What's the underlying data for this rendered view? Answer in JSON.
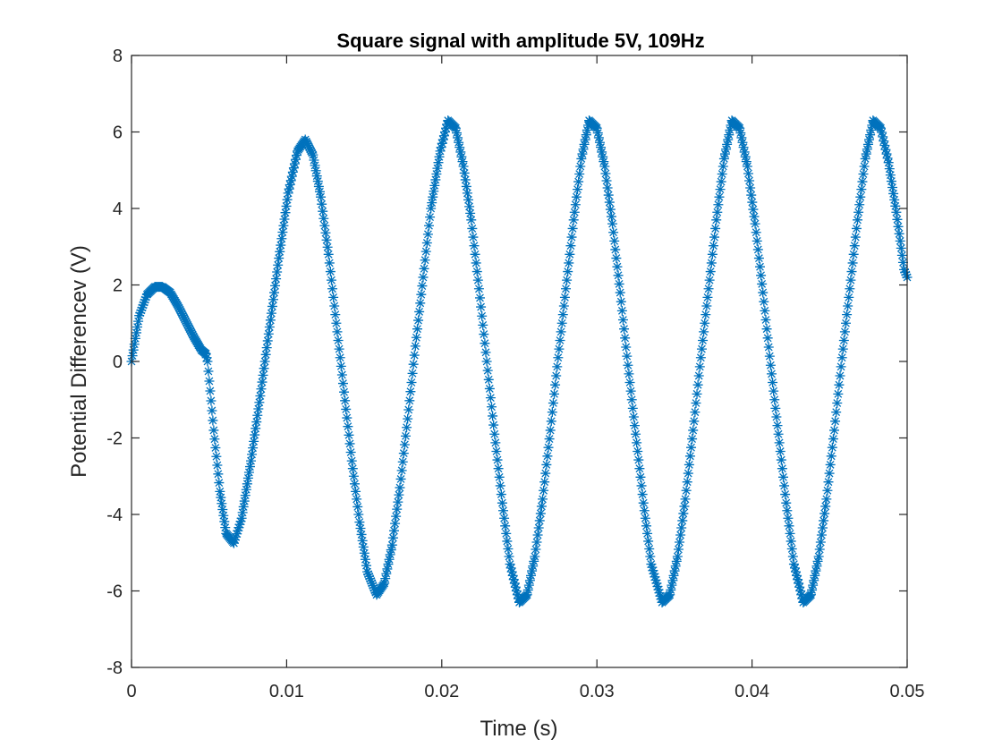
{
  "chart_data": {
    "type": "scatter",
    "title": "Square signal with amplitude 5V, 109Hz",
    "xlabel": "Time (s)",
    "ylabel": "Potential Differencev (V)",
    "xlim": [
      0,
      0.05
    ],
    "ylim": [
      -8,
      8
    ],
    "xticks": [
      0,
      0.01,
      0.02,
      0.03,
      0.04,
      0.05
    ],
    "xtick_labels": [
      "0",
      "0.01",
      "0.02",
      "0.03",
      "0.04",
      "0.05"
    ],
    "yticks": [
      -8,
      -6,
      -4,
      -2,
      0,
      2,
      4,
      6,
      8
    ],
    "ytick_labels": [
      "-8",
      "-6",
      "-4",
      "-2",
      "0",
      "2",
      "4",
      "6",
      "8"
    ],
    "grid": false,
    "marker": "asterisk",
    "series": [
      {
        "color": "#0072bd",
        "x": [
          0,
          0.0005,
          0.001,
          0.0015,
          0.002,
          0.0025,
          0.003,
          0.0035,
          0.004,
          0.0045,
          0.0048,
          0.0049,
          0.0053,
          0.0057,
          0.0061,
          0.0066,
          0.0071,
          0.0077,
          0.0083,
          0.0089,
          0.0095,
          0.0101,
          0.0107,
          0.0112,
          0.0117,
          0.0122,
          0.0127,
          0.0132,
          0.0137,
          0.0142,
          0.0147,
          0.0152,
          0.0158,
          0.0163,
          0.0168,
          0.0173,
          0.0178,
          0.0183,
          0.0188,
          0.0193,
          0.0199,
          0.0204,
          0.0209,
          0.0214,
          0.0219,
          0.0224,
          0.0229,
          0.0234,
          0.0239,
          0.0244,
          0.025,
          0.0255,
          0.026,
          0.0265,
          0.027,
          0.0275,
          0.028,
          0.0285,
          0.029,
          0.0295,
          0.03,
          0.0305,
          0.031,
          0.0315,
          0.032,
          0.0325,
          0.033,
          0.0335,
          0.0342,
          0.0347,
          0.0352,
          0.0357,
          0.0362,
          0.0367,
          0.0372,
          0.0377,
          0.0382,
          0.0387,
          0.0392,
          0.0397,
          0.0402,
          0.0407,
          0.0412,
          0.0417,
          0.0422,
          0.0427,
          0.0433,
          0.0438,
          0.0443,
          0.0448,
          0.0453,
          0.0458,
          0.0463,
          0.0468,
          0.0473,
          0.0478,
          0.0483,
          0.0488,
          0.0493,
          0.0498,
          0.05
        ],
        "y": [
          0,
          1.2,
          1.75,
          1.95,
          1.95,
          1.8,
          1.45,
          1.05,
          0.65,
          0.3,
          0.2,
          0.0,
          -1.8,
          -3.4,
          -4.5,
          -4.75,
          -4.1,
          -2.6,
          -0.9,
          0.9,
          2.7,
          4.4,
          5.5,
          5.8,
          5.4,
          4.3,
          2.8,
          1.0,
          -0.8,
          -2.6,
          -4.2,
          -5.5,
          -6.1,
          -5.8,
          -4.8,
          -3.3,
          -1.5,
          0.4,
          2.2,
          4.0,
          5.5,
          6.3,
          6.1,
          5.1,
          3.7,
          1.9,
          0.0,
          -1.9,
          -3.7,
          -5.3,
          -6.3,
          -6.1,
          -5.1,
          -3.6,
          -1.8,
          0.1,
          1.9,
          3.7,
          5.3,
          6.3,
          6.1,
          5.1,
          3.6,
          1.8,
          -0.1,
          -1.9,
          -3.7,
          -5.3,
          -6.3,
          -6.1,
          -5.1,
          -3.6,
          -1.8,
          0.1,
          1.9,
          3.7,
          5.3,
          6.3,
          6.1,
          5.1,
          3.6,
          1.8,
          -0.1,
          -1.9,
          -3.7,
          -5.3,
          -6.3,
          -6.1,
          -5.1,
          -3.6,
          -1.8,
          0.1,
          1.9,
          3.7,
          5.3,
          6.3,
          6.1,
          5.2,
          3.9,
          2.4,
          2.2
        ]
      }
    ]
  }
}
